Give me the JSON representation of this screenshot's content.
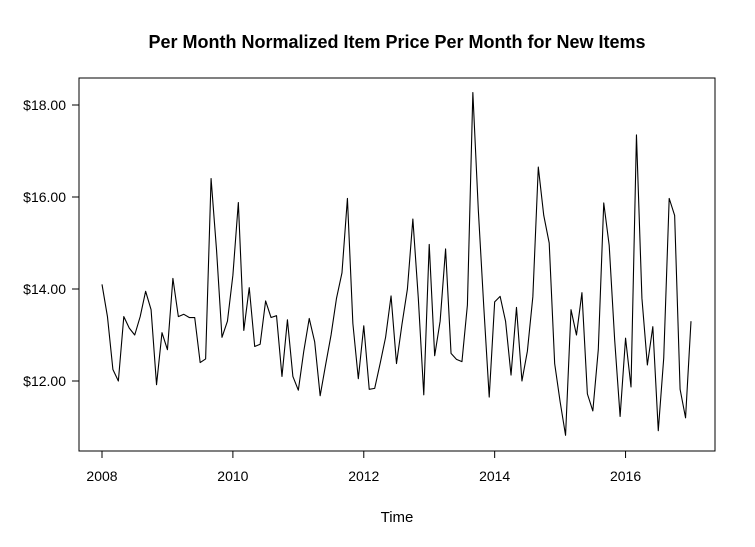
{
  "chart_data": {
    "type": "line",
    "title": "Per Month Normalized Item Price Per Month for New Items",
    "xlabel": "Time",
    "ylabel": "",
    "x_start": 2008,
    "x_step_months": 1,
    "xlim": [
      2008,
      2017
    ],
    "ylim": [
      11.0,
      18.3
    ],
    "x_ticks": [
      2008,
      2010,
      2012,
      2014,
      2016
    ],
    "x_tick_labels": [
      "2008",
      "2010",
      "2012",
      "2014",
      "2016"
    ],
    "y_ticks": [
      12,
      14,
      16,
      18
    ],
    "y_tick_labels": [
      "$12.00",
      "$14.00",
      "$16.00",
      "$18.00"
    ],
    "grid": false,
    "legend": "none",
    "series": [
      {
        "color": "#000000",
        "values": [
          14.1,
          13.4,
          12.25,
          12.0,
          13.4,
          13.15,
          13.0,
          13.4,
          13.95,
          13.55,
          11.92,
          13.05,
          12.68,
          14.23,
          13.4,
          13.45,
          13.38,
          13.38,
          12.4,
          12.48,
          16.4,
          14.85,
          12.95,
          13.3,
          14.3,
          15.88,
          13.1,
          14.03,
          12.75,
          12.8,
          13.74,
          13.38,
          13.42,
          12.1,
          13.33,
          12.1,
          11.8,
          12.65,
          13.36,
          12.85,
          11.68,
          12.35,
          13.0,
          13.8,
          14.35,
          15.97,
          13.25,
          12.05,
          13.2,
          11.82,
          11.84,
          12.38,
          12.95,
          13.85,
          12.38,
          13.23,
          14.0,
          15.52,
          13.8,
          11.7,
          14.97,
          12.55,
          13.3,
          14.87,
          12.6,
          12.47,
          12.42,
          13.65,
          18.27,
          15.72,
          13.62,
          11.65,
          13.72,
          13.84,
          13.3,
          12.13,
          13.6,
          12.0,
          12.65,
          13.83,
          16.65,
          15.6,
          15.0,
          12.38,
          11.55,
          10.82,
          13.55,
          13.0,
          13.92,
          11.72,
          11.35,
          12.68,
          15.87,
          14.95,
          12.9,
          11.23,
          12.93,
          11.87,
          17.35,
          13.8,
          12.35,
          13.18,
          10.92,
          12.5,
          15.97,
          15.6,
          11.82,
          11.2,
          13.3
        ]
      }
    ]
  }
}
